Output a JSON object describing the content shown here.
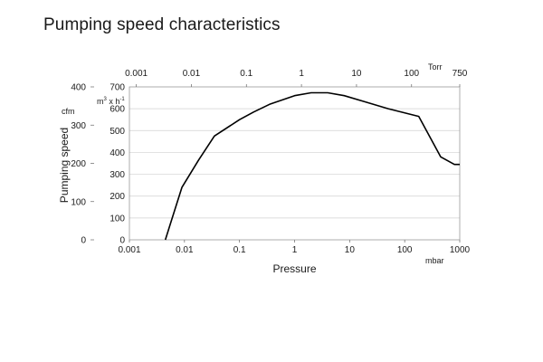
{
  "page": {
    "title": "Pumping speed characteristics"
  },
  "chart_data": {
    "type": "line",
    "title": "Pumping speed characteristics",
    "xlabel": "Pressure",
    "ylabel": "Pumping speed",
    "x_scale": "log",
    "x_unit": "mbar",
    "xlim": [
      0.001,
      1000
    ],
    "x_ticks": [
      "0.001",
      "0.01",
      "0.1",
      "1",
      "10",
      "100",
      "1000"
    ],
    "x2_unit": "Torr",
    "x2_ticks": [
      "0.001",
      "0.01",
      "0.1",
      "1",
      "10",
      "100",
      "750"
    ],
    "x2_tick_values": [
      0.001,
      0.01,
      0.1,
      1,
      10,
      100,
      750
    ],
    "y_left_unit": "cfm",
    "y_left_lim": [
      0,
      400
    ],
    "y_left_ticks": [
      "0",
      "100",
      "200",
      "300",
      "400"
    ],
    "y_right_unit": "m3 x h-1",
    "y_right_unit_parts": {
      "base": "m",
      "sup1": "3",
      "mid": " x h",
      "sup2": "-1"
    },
    "y_right_lim": [
      0,
      700
    ],
    "y_right_ticks": [
      "0",
      "100",
      "200",
      "300",
      "400",
      "500",
      "600",
      "700"
    ],
    "grid": true,
    "series": [
      {
        "color": "#000000",
        "x": [
          0.0045,
          0.006,
          0.009,
          0.018,
          0.035,
          0.1,
          0.18,
          0.35,
          1,
          2,
          4,
          8,
          20,
          50,
          180,
          450,
          800,
          1000
        ],
        "y": [
          0,
          100,
          240,
          365,
          475,
          550,
          585,
          620,
          660,
          673,
          673,
          660,
          630,
          600,
          565,
          380,
          345,
          345
        ]
      }
    ]
  }
}
